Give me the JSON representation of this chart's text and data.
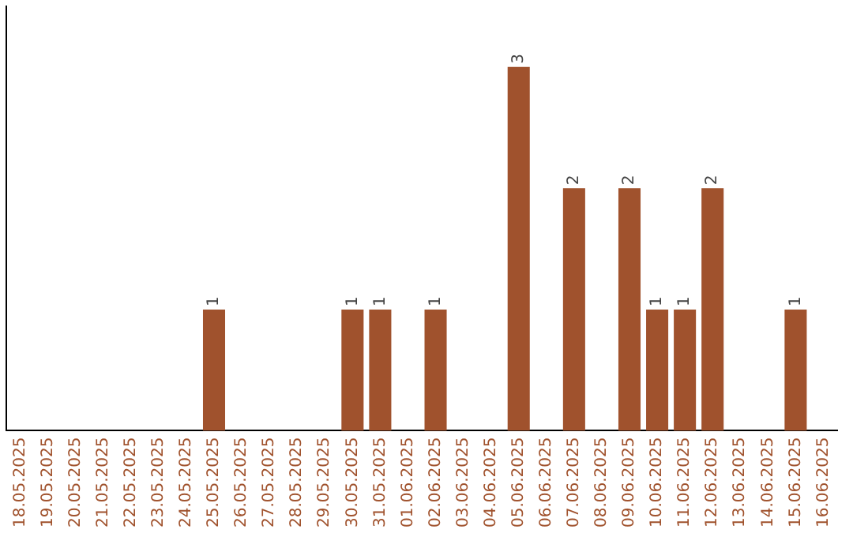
{
  "chart_data": {
    "type": "bar",
    "categories": [
      "18.05.2025",
      "19.05.2025",
      "20.05.2025",
      "21.05.2025",
      "22.05.2025",
      "23.05.2025",
      "24.05.2025",
      "25.05.2025",
      "26.05.2025",
      "27.05.2025",
      "28.05.2025",
      "29.05.2025",
      "30.05.2025",
      "31.05.2025",
      "01.06.2025",
      "02.06.2025",
      "03.06.2025",
      "04.06.2025",
      "05.06.2025",
      "06.06.2025",
      "07.06.2025",
      "08.06.2025",
      "09.06.2025",
      "10.06.2025",
      "11.06.2025",
      "12.06.2025",
      "13.06.2025",
      "14.06.2025",
      "15.06.2025",
      "16.06.2025"
    ],
    "values": [
      0,
      0,
      0,
      0,
      0,
      0,
      0,
      1,
      0,
      0,
      0,
      0,
      1,
      1,
      0,
      1,
      0,
      0,
      3,
      0,
      2,
      0,
      2,
      1,
      1,
      2,
      0,
      0,
      1,
      0
    ],
    "value_labels": [
      null,
      null,
      null,
      null,
      null,
      null,
      null,
      "1",
      null,
      null,
      null,
      null,
      "1",
      "1",
      null,
      "1",
      null,
      null,
      "3",
      null,
      "2",
      null,
      "2",
      "1",
      "1",
      "2",
      null,
      null,
      "1",
      null
    ],
    "color": "#a0522d",
    "grid": false,
    "legend": false,
    "tick_labels": "x"
  }
}
